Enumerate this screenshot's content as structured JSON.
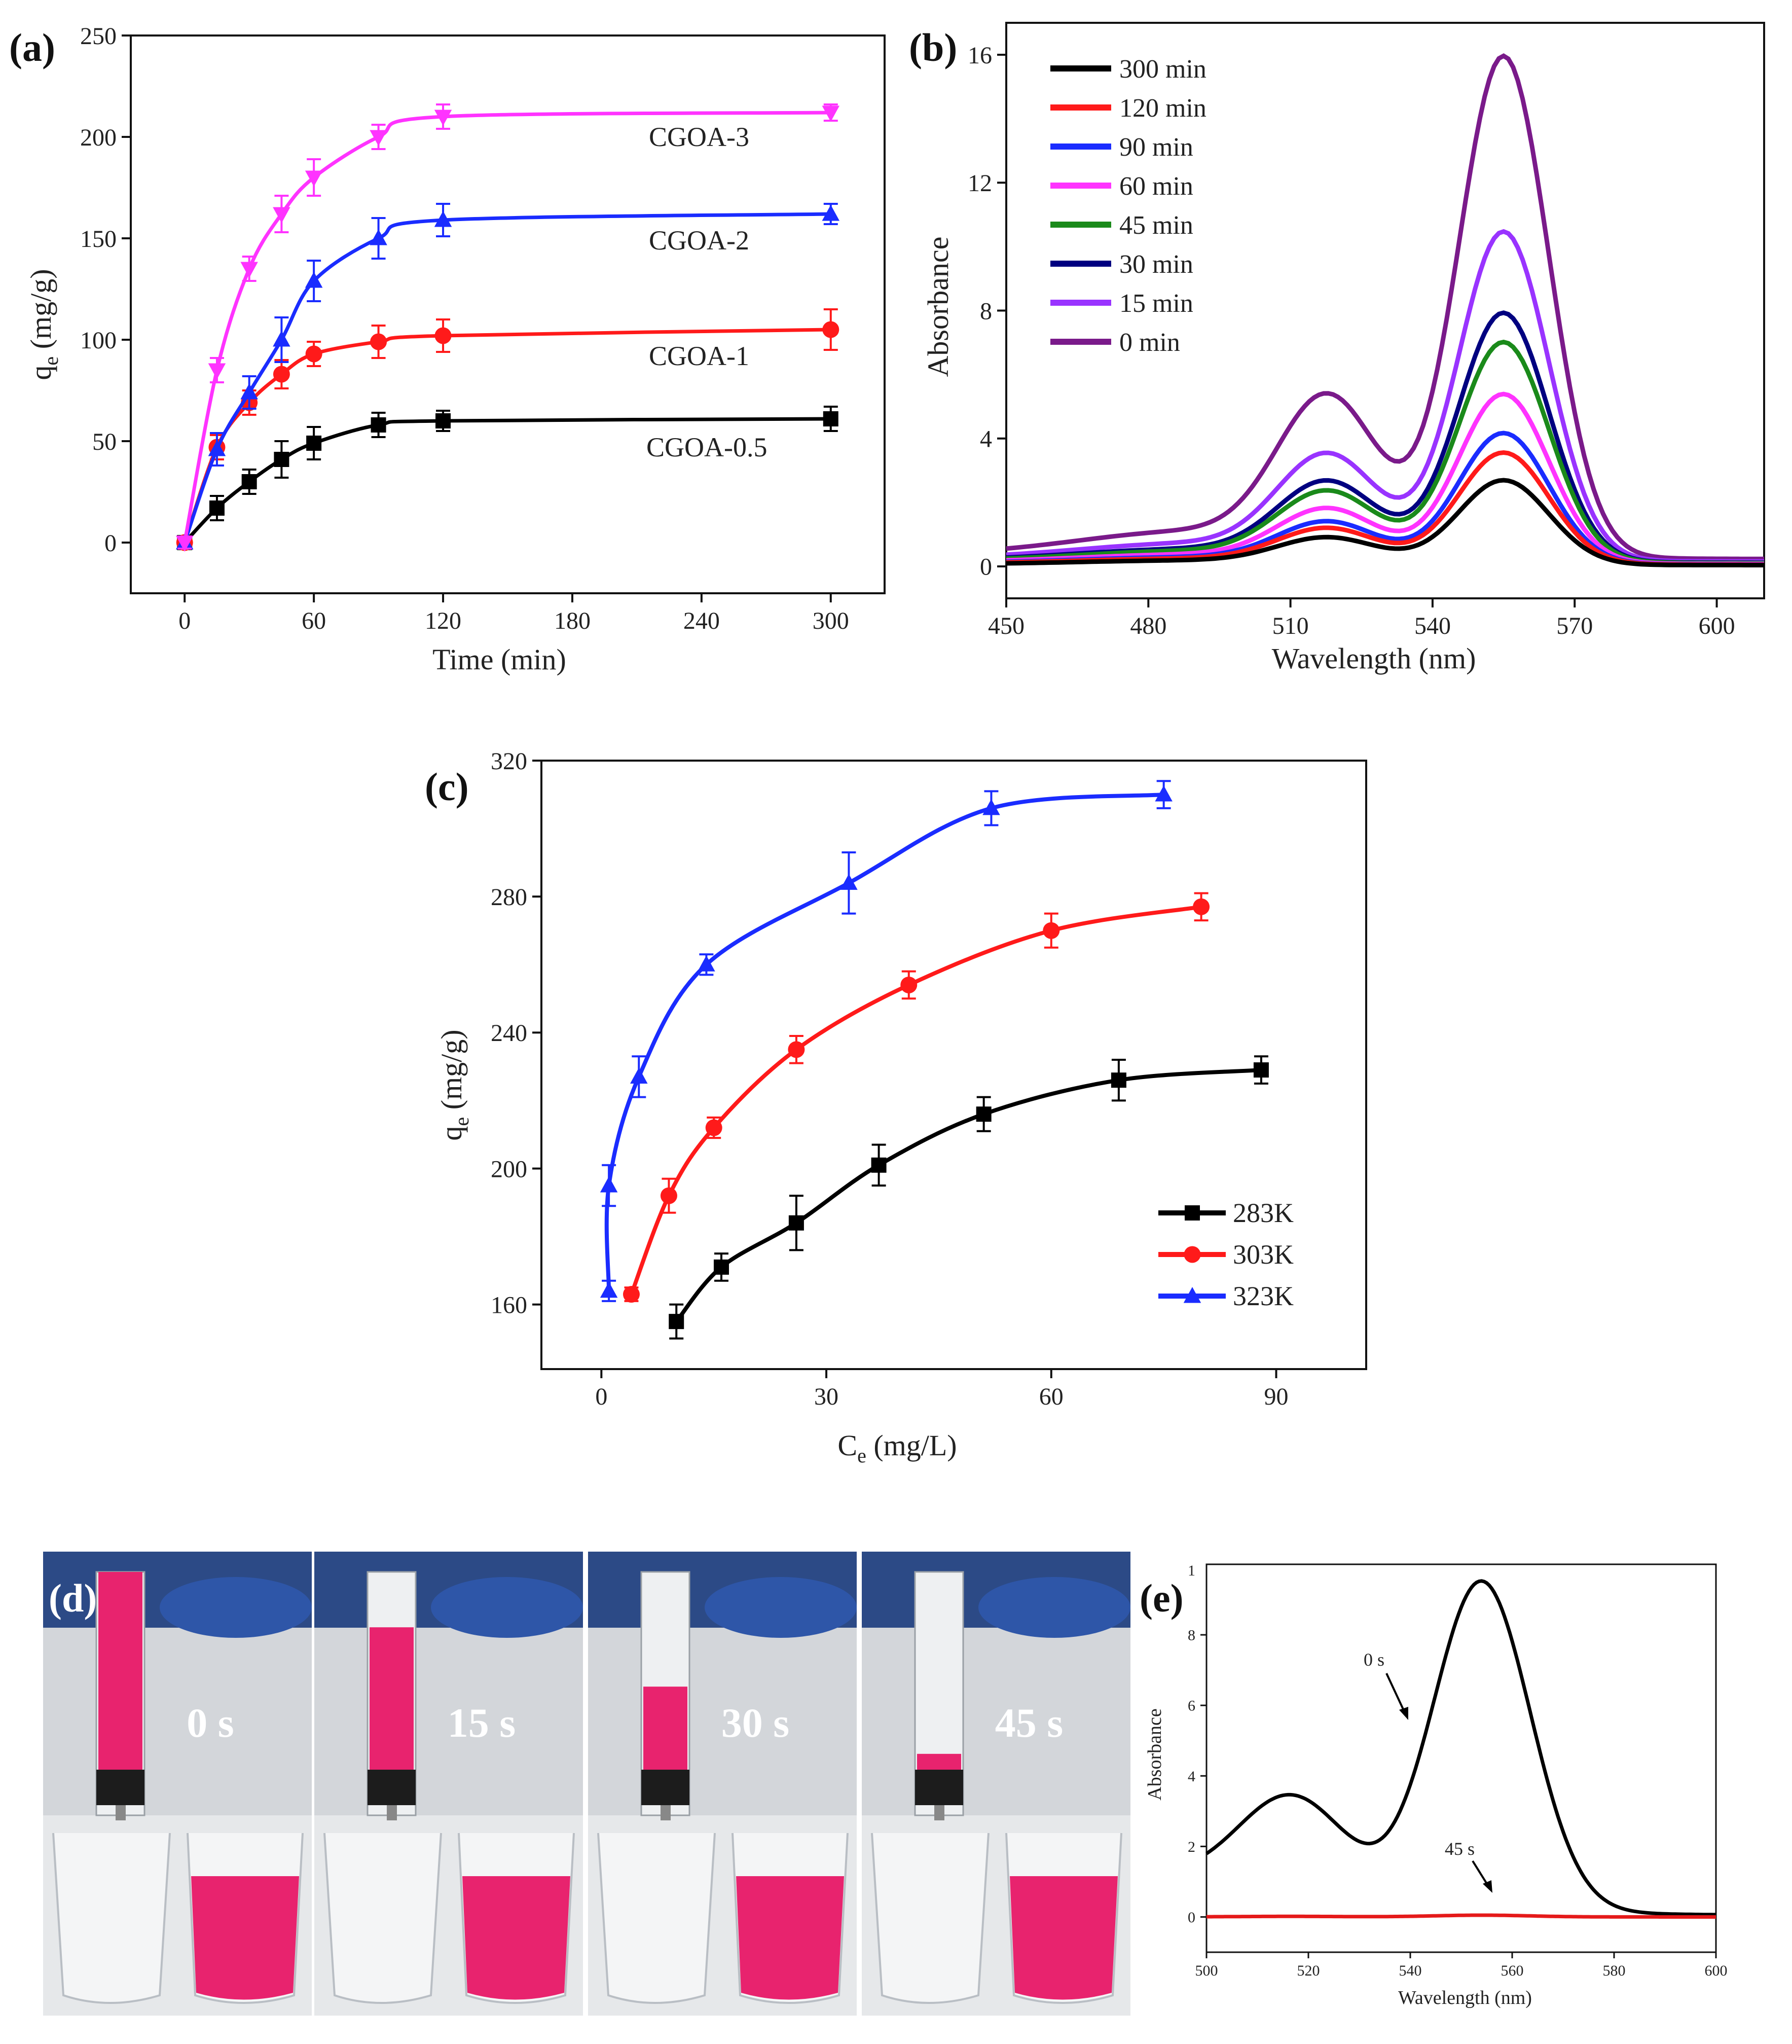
{
  "chart_data": [
    {
      "panel": "(a)",
      "type": "line",
      "xlabel": "Time (min)",
      "ylabel": "q",
      "ylabel_sub": "e",
      "ylabel_unit": " (mg/g)",
      "xlim": [
        -25,
        325
      ],
      "ylim": [
        -25,
        250
      ],
      "xticks": [
        0,
        60,
        120,
        180,
        240,
        300
      ],
      "yticks": [
        0,
        50,
        100,
        150,
        200,
        250
      ],
      "series": [
        {
          "name": "CGOA-0.5",
          "color": "#000000",
          "marker": "square",
          "x": [
            0,
            15,
            30,
            45,
            60,
            90,
            120,
            300
          ],
          "y": [
            0,
            17,
            30,
            41,
            49,
            58,
            60,
            61
          ],
          "err": [
            3,
            6,
            6,
            9,
            8,
            6,
            5,
            6
          ]
        },
        {
          "name": "CGOA-1",
          "color": "#ff1a1a",
          "marker": "circle",
          "x": [
            0,
            15,
            30,
            45,
            60,
            90,
            120,
            300
          ],
          "y": [
            0,
            47,
            69,
            83,
            93,
            99,
            102,
            105
          ],
          "err": [
            3,
            6,
            6,
            7,
            6,
            8,
            8,
            10
          ]
        },
        {
          "name": "CGOA-2",
          "color": "#1a2cff",
          "marker": "triangle-up",
          "x": [
            0,
            15,
            30,
            45,
            60,
            90,
            120,
            300
          ],
          "y": [
            0,
            46,
            74,
            100,
            129,
            150,
            159,
            162
          ],
          "err": [
            3,
            8,
            8,
            11,
            10,
            10,
            8,
            5
          ]
        },
        {
          "name": "CGOA-3",
          "color": "#ff33ff",
          "marker": "triangle-down",
          "x": [
            0,
            15,
            30,
            45,
            60,
            90,
            120,
            300
          ],
          "y": [
            0,
            85,
            135,
            162,
            180,
            200,
            210,
            212
          ],
          "err": [
            3,
            6,
            6,
            9,
            9,
            6,
            6,
            4
          ]
        }
      ],
      "annotations": [
        "CGOA-3",
        "CGOA-2",
        "CGOA-1",
        "CGOA-0.5"
      ]
    },
    {
      "panel": "(b)",
      "type": "line",
      "xlabel": "Wavelength (nm)",
      "ylabel": "Absorbance",
      "xlim": [
        450,
        610
      ],
      "ylim": [
        -1,
        17
      ],
      "xticks": [
        450,
        480,
        510,
        540,
        570,
        600
      ],
      "yticks": [
        0,
        4,
        8,
        12,
        16
      ],
      "legend_position": "top-left",
      "series": [
        {
          "name": "300 min",
          "color": "#000000",
          "peak": 2.65
        },
        {
          "name": "120 min",
          "color": "#ff1a1a",
          "peak": 3.5
        },
        {
          "name": "90 min",
          "color": "#1a2cff",
          "peak": 4.1
        },
        {
          "name": "60 min",
          "color": "#ff33ff",
          "peak": 5.3
        },
        {
          "name": "45 min",
          "color": "#1a8a1a",
          "peak": 6.9
        },
        {
          "name": "30 min",
          "color": "#000080",
          "peak": 7.8
        },
        {
          "name": "15 min",
          "color": "#9933ff",
          "peak": 10.3
        },
        {
          "name": "0 min",
          "color": "#7a1a8a",
          "peak": 15.7
        }
      ]
    },
    {
      "panel": "(c)",
      "type": "line",
      "xlabel": "C",
      "xlabel_sub": "e",
      "xlabel_unit": " (mg/L)",
      "ylabel": "q",
      "ylabel_sub": "e",
      "ylabel_unit": " (mg/g)",
      "xlim": [
        -8,
        102
      ],
      "ylim": [
        141,
        320
      ],
      "xticks": [
        0,
        30,
        60,
        90
      ],
      "yticks": [
        160,
        200,
        240,
        280,
        320
      ],
      "legend_position": "bottom-right",
      "series": [
        {
          "name": "283K",
          "color": "#000000",
          "marker": "square",
          "x": [
            10,
            16,
            26,
            37,
            51,
            69,
            88
          ],
          "y": [
            155,
            171,
            184,
            201,
            216,
            226,
            229
          ],
          "err": [
            5,
            4,
            8,
            6,
            5,
            6,
            4
          ]
        },
        {
          "name": "303K",
          "color": "#ff1a1a",
          "marker": "circle",
          "x": [
            4,
            9,
            15,
            26,
            41,
            60,
            80
          ],
          "y": [
            163,
            192,
            212,
            235,
            254,
            270,
            277
          ],
          "err": [
            2,
            5,
            3,
            4,
            4,
            5,
            4
          ]
        },
        {
          "name": "323K",
          "color": "#1a2cff",
          "marker": "triangle-up",
          "x": [
            1,
            1,
            5,
            14,
            33,
            52,
            75
          ],
          "y": [
            164,
            195,
            227,
            260,
            284,
            306,
            310
          ],
          "err": [
            3,
            6,
            6,
            3,
            9,
            5,
            4
          ]
        }
      ]
    },
    {
      "panel": "(e)",
      "type": "line",
      "xlabel": "Wavelength (nm)",
      "ylabel": "Absorbance",
      "xlim": [
        500,
        600
      ],
      "ylim": [
        -1,
        10
      ],
      "xticks": [
        500,
        520,
        540,
        560,
        580,
        600
      ],
      "yticks": [
        0,
        2,
        4,
        6,
        8
      ],
      "top_tick_label": "1",
      "series": [
        {
          "name": "0 s",
          "color": "#000000",
          "peak": 9.3
        },
        {
          "name": "45 s",
          "color": "#e51a1a",
          "peak": 0.05
        }
      ],
      "annotations": [
        "0 s",
        "45 s"
      ]
    }
  ],
  "photo": {
    "panel": "(d)",
    "frames": [
      "0 s",
      "15 s",
      "30 s",
      "45 s"
    ],
    "liquid_color": "#e8236e"
  }
}
